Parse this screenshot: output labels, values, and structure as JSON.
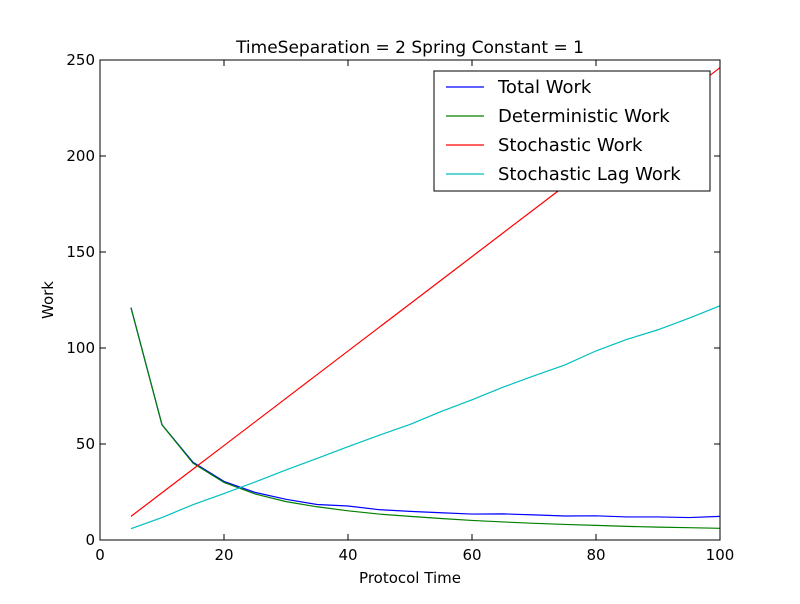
{
  "chart_data": {
    "type": "line",
    "title": "TimeSeparation = 2 Spring Constant = 1",
    "xlabel": "Protocol Time",
    "ylabel": "Work",
    "xlim": [
      0,
      100
    ],
    "ylim": [
      0,
      250
    ],
    "xticks": [
      0,
      20,
      40,
      60,
      80,
      100
    ],
    "yticks": [
      0,
      50,
      100,
      150,
      200,
      250
    ],
    "legend_position": "top-right",
    "grid": false,
    "x": [
      5,
      10,
      15,
      20,
      25,
      30,
      35,
      40,
      45,
      50,
      55,
      60,
      65,
      70,
      75,
      80,
      85,
      90,
      95,
      100
    ],
    "series": [
      {
        "name": "Total Work",
        "color": "#0000ff",
        "values": [
          121,
          60,
          40.5,
          30.5,
          24.8,
          21.2,
          18.5,
          17.7,
          15.8,
          14.9,
          14.2,
          13.5,
          13.6,
          13.1,
          12.5,
          12.6,
          12.0,
          12.0,
          11.7,
          12.3
        ]
      },
      {
        "name": "Deterministic Work",
        "color": "#008000",
        "values": [
          121,
          60,
          40,
          30,
          24,
          20,
          17.3,
          15.2,
          13.5,
          12.3,
          11.2,
          10.2,
          9.4,
          8.7,
          8.1,
          7.6,
          7.1,
          6.7,
          6.4,
          6.1
        ]
      },
      {
        "name": "Stochastic Work",
        "color": "#ff0000",
        "values": [
          12.3,
          24.6,
          36.9,
          49.2,
          61.5,
          73.8,
          86.1,
          98.4,
          110.7,
          123.0,
          135.3,
          147.6,
          159.9,
          172.2,
          184.5,
          196.8,
          209.1,
          221.4,
          233.7,
          246.0
        ]
      },
      {
        "name": "Stochastic Lag Work",
        "color": "#00bfbf",
        "values": [
          5.9,
          11.7,
          18.4,
          24.2,
          30.2,
          36.5,
          42.5,
          48.6,
          54.5,
          60.2,
          66.9,
          73.0,
          79.6,
          85.5,
          91.2,
          98.5,
          104.5,
          109.5,
          115.5,
          122.0
        ]
      }
    ]
  }
}
